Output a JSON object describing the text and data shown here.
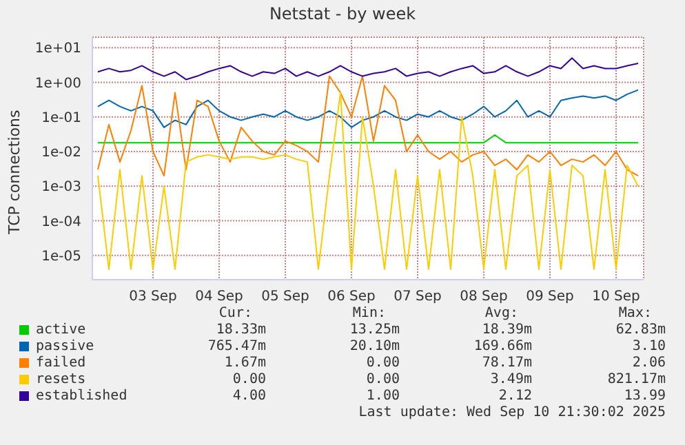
{
  "chart_data": {
    "type": "line",
    "title": "Netstat - by week",
    "ylabel": "TCP connections",
    "log": "y",
    "grid": true,
    "legend": "bottom",
    "marker": "none",
    "line_style": "solid",
    "ylim": [
      2e-06,
      20
    ],
    "yticks": [
      {
        "value": 10,
        "label": "1e+01"
      },
      {
        "value": 1,
        "label": "1e+00"
      },
      {
        "value": 0.1,
        "label": "1e-01"
      },
      {
        "value": 0.01,
        "label": "1e-02"
      },
      {
        "value": 0.001,
        "label": "1e-03"
      },
      {
        "value": 0.0001,
        "label": "1e-04"
      },
      {
        "value": 1e-05,
        "label": "1e-05"
      }
    ],
    "xlim": [
      "2025-09-02T14:00",
      "2025-09-10T22:00"
    ],
    "xticks": [
      {
        "value": "2025-09-03T12:00",
        "label": "03 Sep"
      },
      {
        "value": "2025-09-04T12:00",
        "label": "04 Sep"
      },
      {
        "value": "2025-09-05T12:00",
        "label": "05 Sep"
      },
      {
        "value": "2025-09-06T12:00",
        "label": "06 Sep"
      },
      {
        "value": "2025-09-07T12:00",
        "label": "07 Sep"
      },
      {
        "value": "2025-09-08T12:00",
        "label": "08 Sep"
      },
      {
        "value": "2025-09-09T12:00",
        "label": "09 Sep"
      },
      {
        "value": "2025-09-10T12:00",
        "label": "10 Sep"
      }
    ],
    "x": [
      "2025-09-02T16:00",
      "2025-09-02T20:00",
      "2025-09-03T00:00",
      "2025-09-03T04:00",
      "2025-09-03T08:00",
      "2025-09-03T12:00",
      "2025-09-03T16:00",
      "2025-09-03T20:00",
      "2025-09-04T00:00",
      "2025-09-04T04:00",
      "2025-09-04T08:00",
      "2025-09-04T12:00",
      "2025-09-04T16:00",
      "2025-09-04T20:00",
      "2025-09-05T00:00",
      "2025-09-05T04:00",
      "2025-09-05T08:00",
      "2025-09-05T12:00",
      "2025-09-05T16:00",
      "2025-09-05T20:00",
      "2025-09-06T00:00",
      "2025-09-06T04:00",
      "2025-09-06T08:00",
      "2025-09-06T12:00",
      "2025-09-06T16:00",
      "2025-09-06T20:00",
      "2025-09-07T00:00",
      "2025-09-07T04:00",
      "2025-09-07T08:00",
      "2025-09-07T12:00",
      "2025-09-07T16:00",
      "2025-09-07T20:00",
      "2025-09-08T00:00",
      "2025-09-08T04:00",
      "2025-09-08T08:00",
      "2025-09-08T12:00",
      "2025-09-08T16:00",
      "2025-09-08T20:00",
      "2025-09-09T00:00",
      "2025-09-09T04:00",
      "2025-09-09T08:00",
      "2025-09-09T12:00",
      "2025-09-09T16:00",
      "2025-09-09T20:00",
      "2025-09-10T00:00",
      "2025-09-10T04:00",
      "2025-09-10T08:00",
      "2025-09-10T12:00",
      "2025-09-10T16:00",
      "2025-09-10T20:00"
    ],
    "series": [
      {
        "name": "active",
        "color": "#00cc00",
        "values": [
          0.018,
          0.018,
          0.018,
          0.018,
          0.018,
          0.018,
          0.018,
          0.018,
          0.018,
          0.018,
          0.018,
          0.018,
          0.018,
          0.018,
          0.018,
          0.018,
          0.018,
          0.018,
          0.018,
          0.018,
          0.018,
          0.018,
          0.018,
          0.018,
          0.018,
          0.018,
          0.018,
          0.018,
          0.018,
          0.018,
          0.018,
          0.018,
          0.018,
          0.018,
          0.018,
          0.018,
          0.03,
          0.018,
          0.018,
          0.018,
          0.018,
          0.018,
          0.018,
          0.018,
          0.018,
          0.018,
          0.018,
          0.018,
          0.018,
          0.018
        ]
      },
      {
        "name": "passive",
        "color": "#0066b3",
        "values": [
          0.2,
          0.3,
          0.2,
          0.15,
          0.2,
          0.15,
          0.05,
          0.08,
          0.06,
          0.2,
          0.3,
          0.15,
          0.1,
          0.08,
          0.1,
          0.12,
          0.1,
          0.15,
          0.1,
          0.08,
          0.1,
          0.15,
          0.1,
          0.05,
          0.08,
          0.1,
          0.15,
          0.1,
          0.08,
          0.12,
          0.1,
          0.15,
          0.1,
          0.08,
          0.12,
          0.2,
          0.1,
          0.15,
          0.3,
          0.1,
          0.15,
          0.1,
          0.3,
          0.35,
          0.4,
          0.35,
          0.4,
          0.3,
          0.45,
          0.6
        ]
      },
      {
        "name": "failed",
        "color": "#ff8000",
        "values": [
          0.003,
          0.06,
          0.005,
          0.04,
          0.8,
          0.01,
          0.002,
          0.5,
          0.003,
          0.3,
          0.2,
          0.02,
          0.005,
          0.05,
          0.02,
          0.01,
          0.008,
          0.02,
          0.015,
          0.01,
          0.005,
          1.5,
          0.5,
          0.1,
          1.5,
          0.02,
          0.8,
          0.3,
          0.01,
          0.03,
          0.01,
          0.006,
          0.01,
          0.005,
          0.008,
          0.01,
          0.004,
          0.006,
          0.003,
          0.008,
          0.005,
          0.01,
          0.004,
          0.006,
          0.005,
          0.008,
          0.004,
          0.01,
          0.003,
          0.002
        ]
      },
      {
        "name": "resets",
        "color": "#ffcc00",
        "values": [
          0.002,
          4e-06,
          0.003,
          4e-06,
          0.002,
          4e-06,
          0.001,
          4e-06,
          0.005,
          0.007,
          0.008,
          0.007,
          0.006,
          0.007,
          0.007,
          0.006,
          0.007,
          0.008,
          0.006,
          0.005,
          4e-06,
          0.002,
          0.5,
          4e-06,
          0.1,
          0.001,
          4e-06,
          0.003,
          4e-06,
          0.002,
          4e-06,
          0.003,
          4e-06,
          0.1,
          0.002,
          4e-06,
          0.003,
          4e-06,
          0.002,
          0.004,
          4e-06,
          0.003,
          4e-06,
          0.004,
          0.002,
          4e-06,
          0.003,
          4e-06,
          0.004,
          0.001
        ]
      },
      {
        "name": "established",
        "color": "#330099",
        "values": [
          2,
          2.5,
          2,
          2.2,
          3,
          2,
          1.5,
          2,
          1.2,
          1.5,
          2,
          2.5,
          3,
          2,
          1.5,
          2,
          1.8,
          2.5,
          1.5,
          2,
          1.5,
          2,
          3,
          2,
          1.5,
          1.8,
          2,
          2.5,
          1.5,
          1.8,
          2,
          1.5,
          2,
          2.5,
          3,
          1.8,
          2,
          3,
          2,
          1.5,
          2,
          3,
          2.5,
          5,
          2.5,
          3,
          2.5,
          2.5,
          3,
          3.5
        ]
      }
    ],
    "annotations": [
      "Cur:",
      "Min:",
      "Avg:",
      "Max:",
      "18.33m",
      "13.25m",
      "18.39m",
      "62.83m",
      "765.47m",
      "20.10m",
      "169.66m",
      "3.10",
      "1.67m",
      "0.00",
      "78.17m",
      "2.06",
      "0.00",
      "0.00",
      "3.49m",
      "821.17m",
      "4.00",
      "1.00",
      "2.12",
      "13.99",
      "Last update: Wed Sep 10 21:30:02 2025"
    ]
  }
}
